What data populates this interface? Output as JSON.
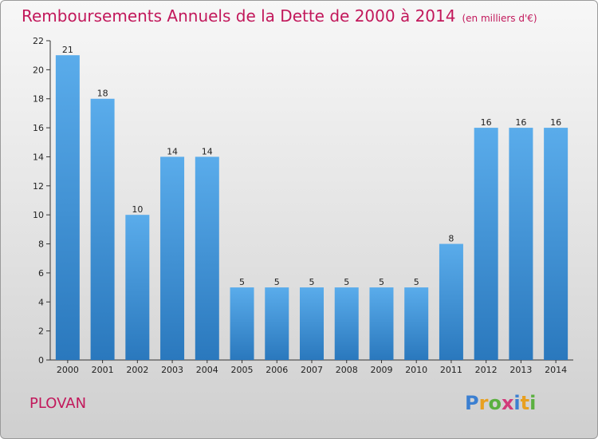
{
  "chart_data": {
    "type": "bar",
    "title": "Remboursements Annuels de la Dette de 2000 à 2014",
    "subtitle": "(en milliers d'€)",
    "categories": [
      "2000",
      "2001",
      "2002",
      "2003",
      "2004",
      "2005",
      "2006",
      "2007",
      "2008",
      "2009",
      "2010",
      "2011",
      "2012",
      "2013",
      "2014"
    ],
    "values": [
      21,
      18,
      10,
      14,
      14,
      5,
      5,
      5,
      5,
      5,
      5,
      8,
      16,
      16,
      16
    ],
    "ylim": [
      0,
      22
    ],
    "yticks": [
      0,
      2,
      4,
      6,
      8,
      10,
      12,
      14,
      16,
      18,
      20,
      22
    ],
    "xlabel": "",
    "ylabel": "",
    "grid": false,
    "bar_color": "#4a9ee0"
  },
  "footer": {
    "place": "PLOVAN",
    "logo_letters": [
      "P",
      "r",
      "o",
      "x",
      "i",
      "t",
      "i"
    ],
    "logo_colors": [
      "#3b7fd1",
      "#e8a020",
      "#5bb040",
      "#d23a7a",
      "#3b7fd1",
      "#e8a020",
      "#5bb040"
    ]
  },
  "colors": {
    "title": "#c2185b",
    "axis": "#333333"
  }
}
